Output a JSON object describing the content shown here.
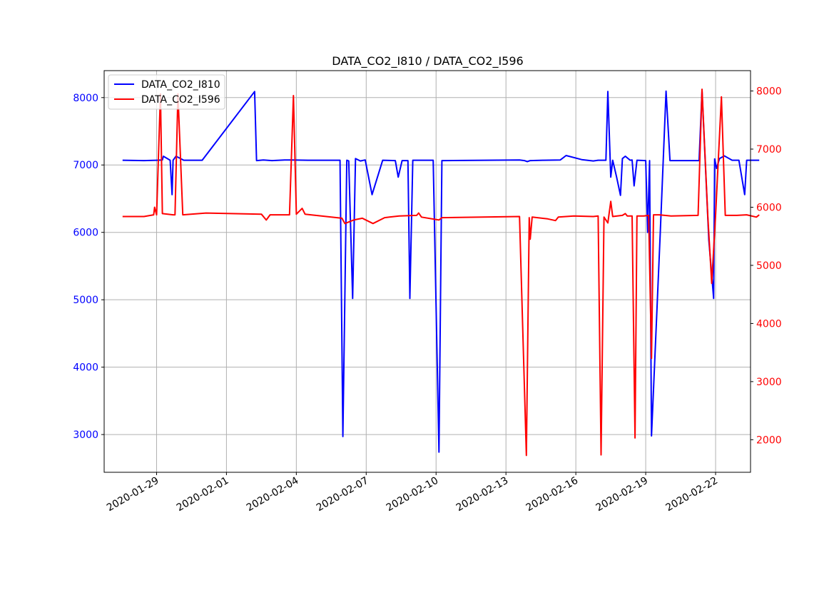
{
  "chart_data": {
    "type": "line",
    "title": "DATA_CO2_I810 / DATA_CO2_I596",
    "xlabel": "",
    "ylabel": "",
    "grid": true,
    "legend_position": "top-left",
    "x_axis": {
      "type": "date",
      "range": [
        "2020-01-26 18:00",
        "2020-02-23 12:00"
      ],
      "ticks": [
        "2020-01-29",
        "2020-02-01",
        "2020-02-04",
        "2020-02-07",
        "2020-02-10",
        "2020-02-13",
        "2020-02-16",
        "2020-02-19",
        "2020-02-22"
      ]
    },
    "y_left": {
      "range": [
        2440,
        8400
      ],
      "ticks": [
        3000,
        4000,
        5000,
        6000,
        7000,
        8000
      ],
      "color": "#0000ff"
    },
    "y_right": {
      "range": [
        1440,
        8350
      ],
      "ticks": [
        2000,
        3000,
        4000,
        5000,
        6000,
        7000,
        8000
      ],
      "color": "#ff0000"
    },
    "series": [
      {
        "name": "DATA_CO2_I810",
        "color": "#0000ff",
        "axis": "left",
        "points": [
          [
            "2020-01-27 13:00",
            7070
          ],
          [
            "2020-01-28 11:00",
            7065
          ],
          [
            "2020-01-29 00:00",
            7070
          ],
          [
            "2020-01-29 06:00",
            7075
          ],
          [
            "2020-01-29 07:00",
            7130
          ],
          [
            "2020-01-29 14:00",
            7070
          ],
          [
            "2020-01-29 16:00",
            6560
          ],
          [
            "2020-01-29 17:00",
            7070
          ],
          [
            "2020-01-29 20:00",
            7130
          ],
          [
            "2020-01-30 04:00",
            7070
          ],
          [
            "2020-01-30 23:00",
            7070
          ],
          [
            "2020-02-02 05:00",
            8090
          ],
          [
            "2020-02-02 07:00",
            7065
          ],
          [
            "2020-02-02 14:00",
            7075
          ],
          [
            "2020-02-02 23:00",
            7065
          ],
          [
            "2020-02-03 12:00",
            7075
          ],
          [
            "2020-02-03 19:00",
            7075
          ],
          [
            "2020-02-04 12:00",
            7070
          ],
          [
            "2020-02-05 21:00",
            7070
          ],
          [
            "2020-02-06 00:00",
            2970
          ],
          [
            "2020-02-06 04:00",
            7070
          ],
          [
            "2020-02-06 06:00",
            7060
          ],
          [
            "2020-02-06 10:00",
            5020
          ],
          [
            "2020-02-06 13:00",
            7095
          ],
          [
            "2020-02-06 18:00",
            7060
          ],
          [
            "2020-02-06 23:00",
            7075
          ],
          [
            "2020-02-07 06:00",
            6560
          ],
          [
            "2020-02-07 17:00",
            7070
          ],
          [
            "2020-02-08 06:00",
            7065
          ],
          [
            "2020-02-08 09:00",
            6820
          ],
          [
            "2020-02-08 13:00",
            7065
          ],
          [
            "2020-02-08 19:00",
            7065
          ],
          [
            "2020-02-08 21:00",
            5020
          ],
          [
            "2020-02-09 00:00",
            7070
          ],
          [
            "2020-02-09 21:00",
            7070
          ],
          [
            "2020-02-10 03:00",
            2740
          ],
          [
            "2020-02-10 06:00",
            7065
          ],
          [
            "2020-02-13 14:00",
            7075
          ],
          [
            "2020-02-13 19:00",
            7065
          ],
          [
            "2020-02-13 22:00",
            7050
          ],
          [
            "2020-02-14 01:00",
            7065
          ],
          [
            "2020-02-14 14:00",
            7070
          ],
          [
            "2020-02-15 08:00",
            7075
          ],
          [
            "2020-02-15 14:00",
            7140
          ],
          [
            "2020-02-16 06:00",
            7080
          ],
          [
            "2020-02-16 18:00",
            7060
          ],
          [
            "2020-02-16 23:00",
            7070
          ],
          [
            "2020-02-17 07:00",
            7070
          ],
          [
            "2020-02-17 09:00",
            8090
          ],
          [
            "2020-02-17 12:00",
            6820
          ],
          [
            "2020-02-17 14:00",
            7070
          ],
          [
            "2020-02-17 18:00",
            6820
          ],
          [
            "2020-02-17 22:00",
            6550
          ],
          [
            "2020-02-18 00:00",
            7095
          ],
          [
            "2020-02-18 03:00",
            7130
          ],
          [
            "2020-02-18 08:00",
            7070
          ],
          [
            "2020-02-18 10:00",
            7075
          ],
          [
            "2020-02-18 12:00",
            6690
          ],
          [
            "2020-02-18 15:00",
            7070
          ],
          [
            "2020-02-19 00:00",
            7065
          ],
          [
            "2020-02-19 02:00",
            6000
          ],
          [
            "2020-02-19 04:00",
            7065
          ],
          [
            "2020-02-19 06:00",
            2980
          ],
          [
            "2020-02-19 15:00",
            6000
          ],
          [
            "2020-02-19 21:00",
            8095
          ],
          [
            "2020-02-20 01:00",
            7065
          ],
          [
            "2020-02-21 07:00",
            7065
          ],
          [
            "2020-02-21 10:00",
            8100
          ],
          [
            "2020-02-21 17:00",
            5890
          ],
          [
            "2020-02-21 22:00",
            5020
          ],
          [
            "2020-02-21 23:00",
            7090
          ],
          [
            "2020-02-22 01:00",
            6950
          ],
          [
            "2020-02-22 04:00",
            7095
          ],
          [
            "2020-02-22 09:00",
            7135
          ],
          [
            "2020-02-22 17:00",
            7070
          ],
          [
            "2020-02-23 00:00",
            7070
          ],
          [
            "2020-02-23 06:00",
            6560
          ],
          [
            "2020-02-23 08:00",
            7070
          ],
          [
            "2020-02-23 21:00",
            7070
          ]
        ]
      },
      {
        "name": "DATA_CO2_I596",
        "color": "#ff0000",
        "axis": "right",
        "points": [
          [
            "2020-01-27 13:00",
            5840
          ],
          [
            "2020-01-28 11:00",
            5840
          ],
          [
            "2020-01-28 21:00",
            5870
          ],
          [
            "2020-01-28 22:00",
            6000
          ],
          [
            "2020-01-29 00:00",
            5870
          ],
          [
            "2020-01-29 04:00",
            7950
          ],
          [
            "2020-01-29 06:00",
            5890
          ],
          [
            "2020-01-29 17:00",
            5870
          ],
          [
            "2020-01-29 19:00",
            5870
          ],
          [
            "2020-01-29 22:00",
            7950
          ],
          [
            "2020-01-30 03:00",
            5870
          ],
          [
            "2020-01-31 03:00",
            5900
          ],
          [
            "2020-02-02 12:00",
            5880
          ],
          [
            "2020-02-02 17:00",
            5780
          ],
          [
            "2020-02-02 21:00",
            5870
          ],
          [
            "2020-02-03 06:00",
            5870
          ],
          [
            "2020-02-03 17:00",
            5870
          ],
          [
            "2020-02-03 21:00",
            7920
          ],
          [
            "2020-02-04 00:00",
            5880
          ],
          [
            "2020-02-04 06:00",
            5980
          ],
          [
            "2020-02-04 09:00",
            5880
          ],
          [
            "2020-02-05 23:00",
            5810
          ],
          [
            "2020-02-06 02:00",
            5720
          ],
          [
            "2020-02-06 11:00",
            5780
          ],
          [
            "2020-02-06 20:00",
            5810
          ],
          [
            "2020-02-07 07:00",
            5720
          ],
          [
            "2020-02-07 19:00",
            5820
          ],
          [
            "2020-02-08 00:00",
            5830
          ],
          [
            "2020-02-08 10:00",
            5850
          ],
          [
            "2020-02-09 04:00",
            5860
          ],
          [
            "2020-02-09 06:00",
            5900
          ],
          [
            "2020-02-09 09:00",
            5830
          ],
          [
            "2020-02-10 03:00",
            5780
          ],
          [
            "2020-02-10 06:00",
            5820
          ],
          [
            "2020-02-13 14:00",
            5840
          ],
          [
            "2020-02-13 21:00",
            1730
          ],
          [
            "2020-02-14 00:00",
            5820
          ],
          [
            "2020-02-14 01:00",
            5450
          ],
          [
            "2020-02-14 03:00",
            5830
          ],
          [
            "2020-02-14 19:00",
            5800
          ],
          [
            "2020-02-15 03:00",
            5770
          ],
          [
            "2020-02-15 06:00",
            5830
          ],
          [
            "2020-02-15 22:00",
            5850
          ],
          [
            "2020-02-16 18:00",
            5840
          ],
          [
            "2020-02-16 23:00",
            5850
          ],
          [
            "2020-02-17 02:00",
            1740
          ],
          [
            "2020-02-17 05:00",
            5830
          ],
          [
            "2020-02-17 09:00",
            5730
          ],
          [
            "2020-02-17 12:00",
            6100
          ],
          [
            "2020-02-17 14:00",
            5840
          ],
          [
            "2020-02-18 00:00",
            5860
          ],
          [
            "2020-02-18 03:00",
            5890
          ],
          [
            "2020-02-18 05:00",
            5850
          ],
          [
            "2020-02-18 10:00",
            5850
          ],
          [
            "2020-02-18 13:00",
            2030
          ],
          [
            "2020-02-18 15:00",
            5850
          ],
          [
            "2020-02-18 22:00",
            5850
          ],
          [
            "2020-02-19 03:00",
            5860
          ],
          [
            "2020-02-19 06:00",
            3400
          ],
          [
            "2020-02-19 08:00",
            5870
          ],
          [
            "2020-02-19 14:00",
            5870
          ],
          [
            "2020-02-20 02:00",
            5850
          ],
          [
            "2020-02-21 06:00",
            5860
          ],
          [
            "2020-02-21 10:00",
            8030
          ],
          [
            "2020-02-21 16:00",
            5850
          ],
          [
            "2020-02-21 20:00",
            4690
          ],
          [
            "2020-02-22 00:00",
            5860
          ],
          [
            "2020-02-22 06:00",
            7900
          ],
          [
            "2020-02-22 10:00",
            5860
          ],
          [
            "2020-02-22 22:00",
            5860
          ],
          [
            "2020-02-23 08:00",
            5870
          ],
          [
            "2020-02-23 18:00",
            5830
          ],
          [
            "2020-02-23 21:00",
            5870
          ]
        ]
      }
    ]
  }
}
